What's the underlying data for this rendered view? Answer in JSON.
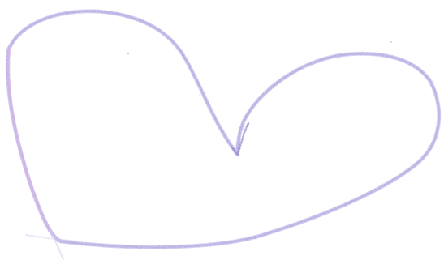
{
  "drawing": {
    "subject": "heart",
    "medium": "crayon",
    "stroke_colors": {
      "main": "#9b8fd6",
      "light": "#c2b8ea",
      "left_side": "#c79ad8",
      "dark_accent": "#5a4fb0"
    },
    "background": "#ffffff"
  }
}
